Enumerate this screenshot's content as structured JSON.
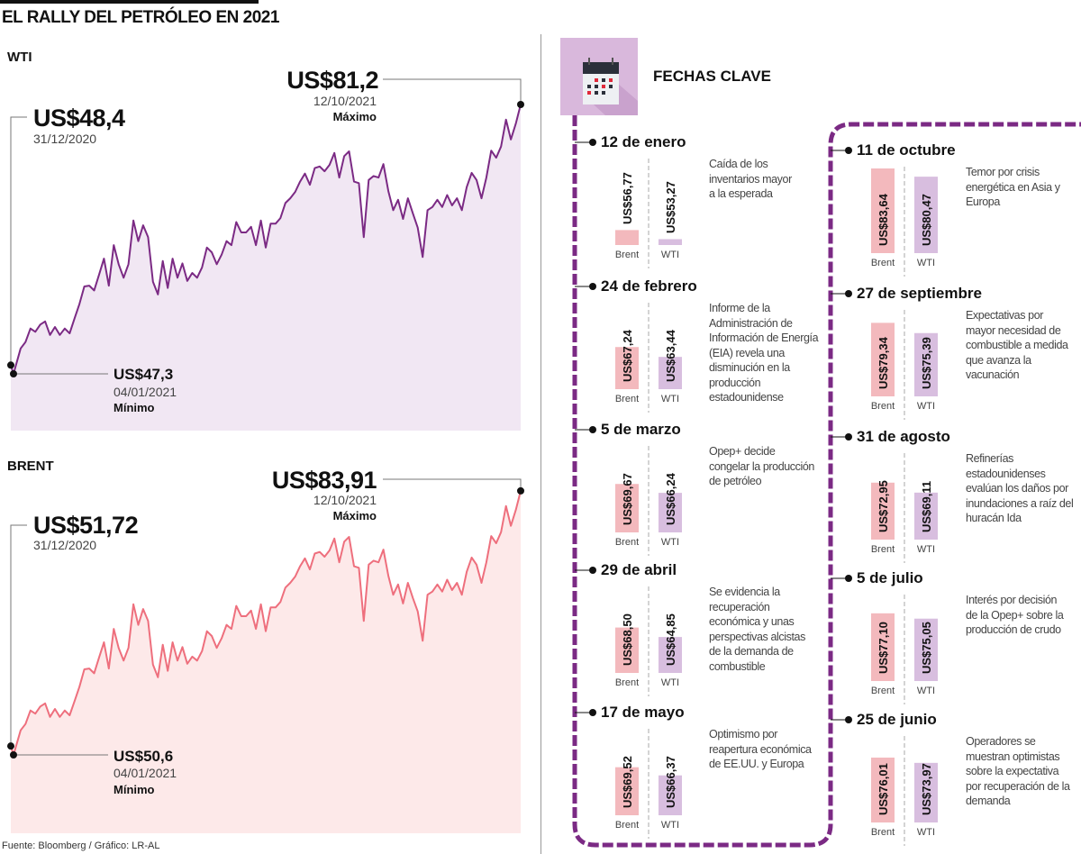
{
  "title": "EL RALLY DEL PETRÓLEO EN 2021",
  "source": "Fuente: Bloomberg / Gráfico: LR-AL",
  "colors": {
    "wti_line": "#7b2a84",
    "wti_fill": "#f1e7f3",
    "brent_line": "#ee6f7d",
    "brent_fill": "#fde9e9",
    "timeline": "#7b2a84",
    "brent_bar": "#f3b9bd",
    "wti_bar": "#d8bedf",
    "icon_bg": "#d9b8dc"
  },
  "chart_data": [
    {
      "type": "area",
      "title": "WTI",
      "x_start": "31/12/2020",
      "x_end": "12/10/2021",
      "annotations": {
        "start": {
          "value_label": "US$48,4",
          "date": "31/12/2020"
        },
        "min": {
          "value_label": "US$47,3",
          "date": "04/01/2021",
          "label": "Mínimo"
        },
        "max": {
          "value_label": "US$81,2",
          "date": "12/10/2021",
          "label": "Máximo"
        }
      },
      "values": [
        48.4,
        47.3,
        50.5,
        51.3,
        53.0,
        52.6,
        53.5,
        53.9,
        52.2,
        53.2,
        52.2,
        53.0,
        52.4,
        54.3,
        56.1,
        58.3,
        58.4,
        57.8,
        59.8,
        61.8,
        58.4,
        63.5,
        61.1,
        59.4,
        61.1,
        66.6,
        64.0,
        66.0,
        64.5,
        58.9,
        57.3,
        61.5,
        58.1,
        61.8,
        59.4,
        61.2,
        59.0,
        60.0,
        59.4,
        60.7,
        63.2,
        62.6,
        61.1,
        62.3,
        64.0,
        63.5,
        66.4,
        65.1,
        65.1,
        65.8,
        63.5,
        66.6,
        63.2,
        66.2,
        66.2,
        66.9,
        68.8,
        69.4,
        70.2,
        71.5,
        72.5,
        71.1,
        73.2,
        73.4,
        72.8,
        73.6,
        75.1,
        72.0,
        74.7,
        75.3,
        71.5,
        71.3,
        64.5,
        71.7,
        72.2,
        72.0,
        73.7,
        70.3,
        67.9,
        69.2,
        66.8,
        69.4,
        67.5,
        65.7,
        62.0,
        67.9,
        68.3,
        69.2,
        68.3,
        69.8,
        68.5,
        69.4,
        67.9,
        70.8,
        72.6,
        71.7,
        69.4,
        72.0,
        75.4,
        74.5,
        75.9,
        79.3,
        76.8,
        78.8,
        81.2
      ]
    },
    {
      "type": "area",
      "title": "BRENT",
      "x_start": "31/12/2020",
      "x_end": "12/10/2021",
      "annotations": {
        "start": {
          "value_label": "US$51,72",
          "date": "31/12/2020"
        },
        "min": {
          "value_label": "US$50,6",
          "date": "04/01/2021",
          "label": "Mínimo"
        },
        "max": {
          "value_label": "US$83,91",
          "date": "12/10/2021",
          "label": "Máximo"
        }
      },
      "values": [
        51.72,
        50.6,
        53.7,
        54.5,
        56.2,
        55.8,
        56.7,
        57.1,
        55.4,
        56.4,
        55.4,
        56.2,
        55.6,
        57.4,
        59.2,
        61.4,
        61.5,
        60.9,
        62.9,
        64.8,
        61.5,
        66.5,
        64.1,
        62.5,
        64.1,
        69.6,
        67.0,
        69.0,
        67.5,
        62.0,
        60.4,
        64.5,
        61.2,
        64.8,
        62.5,
        64.2,
        62.1,
        63.0,
        62.5,
        63.7,
        66.2,
        65.6,
        64.1,
        65.3,
        67.0,
        66.5,
        69.4,
        68.1,
        68.1,
        68.8,
        66.5,
        69.6,
        66.2,
        69.2,
        69.2,
        69.9,
        71.7,
        72.3,
        73.1,
        74.4,
        75.4,
        74.0,
        76.0,
        76.2,
        75.6,
        76.4,
        77.9,
        74.9,
        77.5,
        78.1,
        74.4,
        74.2,
        67.5,
        74.6,
        75.1,
        74.9,
        76.5,
        73.2,
        70.8,
        72.1,
        69.7,
        72.3,
        70.4,
        68.7,
        65.0,
        70.8,
        71.2,
        72.1,
        71.2,
        72.7,
        71.4,
        72.3,
        70.8,
        73.7,
        75.5,
        74.6,
        72.3,
        74.9,
        78.2,
        77.3,
        78.7,
        82.0,
        79.5,
        81.5,
        83.91
      ]
    }
  ],
  "key_dates": {
    "title": "FECHAS CLAVE",
    "icon": "calendar-icon",
    "bar_labels": {
      "brent": "Brent",
      "wti": "WTI"
    },
    "left_column": [
      {
        "date": "12 de enero",
        "brent": 56.77,
        "brent_label": "US$56,77",
        "wti": 53.27,
        "wti_label": "US$53,27",
        "description": [
          "Caída de los",
          "inventarios mayor",
          "a la esperada"
        ]
      },
      {
        "date": "24 de febrero",
        "brent": 67.24,
        "brent_label": "US$67,24",
        "wti": 63.44,
        "wti_label": "US$63,44",
        "description": [
          "Informe de la",
          "Administración de",
          "Información de Energía",
          "(EIA) revela una",
          "disminución en la",
          "producción",
          "estadounidense"
        ]
      },
      {
        "date": "5 de marzo",
        "brent": 69.67,
        "brent_label": "US$69,67",
        "wti": 66.24,
        "wti_label": "US$66,24",
        "description": [
          "Opep+ decide",
          "congelar la producción",
          "de petróleo"
        ]
      },
      {
        "date": "29 de abril",
        "brent": 68.5,
        "brent_label": "US$68,50",
        "wti": 64.85,
        "wti_label": "US$64,85",
        "description": [
          "Se evidencia la",
          "recuperación",
          "económica y unas",
          "perspectivas alcistas",
          "de la demanda de",
          "combustible"
        ]
      },
      {
        "date": "17 de mayo",
        "brent": 69.52,
        "brent_label": "US$69,52",
        "wti": 66.37,
        "wti_label": "US$66,37",
        "description": [
          "Optimismo por",
          "reapertura económica",
          "de EE.UU. y Europa"
        ]
      }
    ],
    "right_column": [
      {
        "date": "11 de octubre",
        "brent": 83.64,
        "brent_label": "US$83,64",
        "wti": 80.47,
        "wti_label": "US$80,47",
        "description": [
          "Temor por crisis",
          "energética en Asia y",
          "Europa"
        ]
      },
      {
        "date": "27 de septiembre",
        "brent": 79.34,
        "brent_label": "US$79,34",
        "wti": 75.39,
        "wti_label": "US$75,39",
        "description": [
          "Expectativas por",
          "mayor necesidad de",
          "combustible a medida",
          "que avanza la",
          "vacunación"
        ]
      },
      {
        "date": "31 de agosto",
        "brent": 72.95,
        "brent_label": "US$72,95",
        "wti": 69.11,
        "wti_label": "US$69,11",
        "description": [
          "Refinerías",
          "estadounidenses",
          "evalúan los daños por",
          "inundaciones a raíz del",
          "huracán Ida"
        ]
      },
      {
        "date": "5 de julio",
        "brent": 77.1,
        "brent_label": "US$77,10",
        "wti": 75.05,
        "wti_label": "US$75,05",
        "description": [
          "Interés por decisión",
          "de la Opep+ sobre la",
          "producción de crudo"
        ]
      },
      {
        "date": "25 de junio",
        "brent": 76.01,
        "brent_label": "US$76,01",
        "wti": 73.97,
        "wti_label": "US$73,97",
        "description": [
          "Operadores se",
          "muestran optimistas",
          "sobre la expectativa",
          "por recuperación de la",
          "demanda"
        ]
      }
    ]
  }
}
